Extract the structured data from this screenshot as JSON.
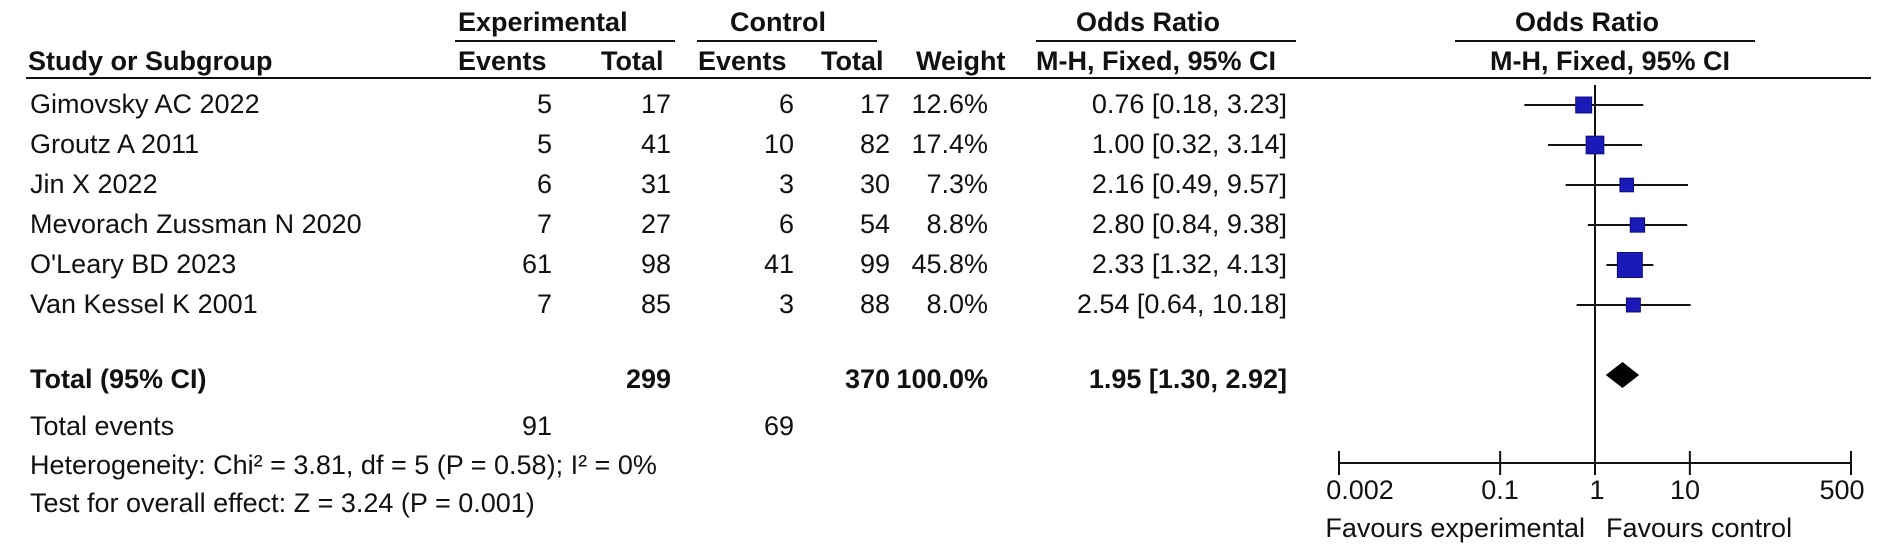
{
  "headers": {
    "group1": "Experimental",
    "group2": "Control",
    "or_text": "Odds Ratio",
    "or_plot": "Odds Ratio",
    "study": "Study or Subgroup",
    "events1": "Events",
    "total1": "Total",
    "events2": "Events",
    "total2": "Total",
    "weight": "Weight",
    "method_text": "M-H, Fixed, 95% CI",
    "method_plot": "M-H, Fixed, 95% CI"
  },
  "studies": [
    {
      "name": "Gimovsky AC 2022",
      "e1": "5",
      "t1": "17",
      "e2": "6",
      "t2": "17",
      "weight": "12.6%",
      "ci_text": "0.76 [0.18, 3.23]"
    },
    {
      "name": "Groutz A 2011",
      "e1": "5",
      "t1": "41",
      "e2": "10",
      "t2": "82",
      "weight": "17.4%",
      "ci_text": "1.00 [0.32, 3.14]"
    },
    {
      "name": "Jin X 2022",
      "e1": "6",
      "t1": "31",
      "e2": "3",
      "t2": "30",
      "weight": "7.3%",
      "ci_text": "2.16 [0.49, 9.57]"
    },
    {
      "name": "Mevorach Zussman N 2020",
      "e1": "7",
      "t1": "27",
      "e2": "6",
      "t2": "54",
      "weight": "8.8%",
      "ci_text": "2.80 [0.84, 9.38]"
    },
    {
      "name": "O'Leary BD 2023",
      "e1": "61",
      "t1": "98",
      "e2": "41",
      "t2": "99",
      "weight": "45.8%",
      "ci_text": "2.33 [1.32, 4.13]"
    },
    {
      "name": "Van Kessel K 2001",
      "e1": "7",
      "t1": "85",
      "e2": "3",
      "t2": "88",
      "weight": "8.0%",
      "ci_text": "2.54 [0.64, 10.18]"
    }
  ],
  "total": {
    "label": "Total (95% CI)",
    "t1": "299",
    "t2": "370",
    "weight": "100.0%",
    "ci_text": "1.95 [1.30, 2.92]"
  },
  "total_events": {
    "label": "Total events",
    "e1": "91",
    "e2": "69"
  },
  "heterogeneity": "Heterogeneity: Chi² = 3.81, df = 5 (P = 0.58); I² = 0%",
  "overall_effect": "Test for overall effect: Z = 3.24 (P = 0.001)",
  "axis": {
    "ticks": [
      "0.002",
      "0.1",
      "1",
      "10",
      "500"
    ],
    "favours_left": "Favours experimental",
    "favours_right": "Favours control"
  },
  "colors": {
    "study_marker": "#1a1ab8",
    "ci_line": "#111111",
    "diamond": "#000000"
  },
  "chart_data": {
    "type": "forest",
    "scale": "log",
    "xlim": [
      0.002,
      500
    ],
    "ticks": [
      0.002,
      0.1,
      1,
      10,
      500
    ],
    "null_line": 1,
    "points": [
      {
        "study": "Gimovsky AC 2022",
        "or": 0.76,
        "lo": 0.18,
        "hi": 3.23,
        "weight": 12.6
      },
      {
        "study": "Groutz A 2011",
        "or": 1.0,
        "lo": 0.32,
        "hi": 3.14,
        "weight": 17.4
      },
      {
        "study": "Jin X 2022",
        "or": 2.16,
        "lo": 0.49,
        "hi": 9.57,
        "weight": 7.3
      },
      {
        "study": "Mevorach Zussman N 2020",
        "or": 2.8,
        "lo": 0.84,
        "hi": 9.38,
        "weight": 8.8
      },
      {
        "study": "O'Leary BD 2023",
        "or": 2.33,
        "lo": 1.32,
        "hi": 4.13,
        "weight": 45.8
      },
      {
        "study": "Van Kessel K 2001",
        "or": 2.54,
        "lo": 0.64,
        "hi": 10.18,
        "weight": 8.0
      }
    ],
    "pooled": {
      "or": 1.95,
      "lo": 1.3,
      "hi": 2.92
    }
  }
}
